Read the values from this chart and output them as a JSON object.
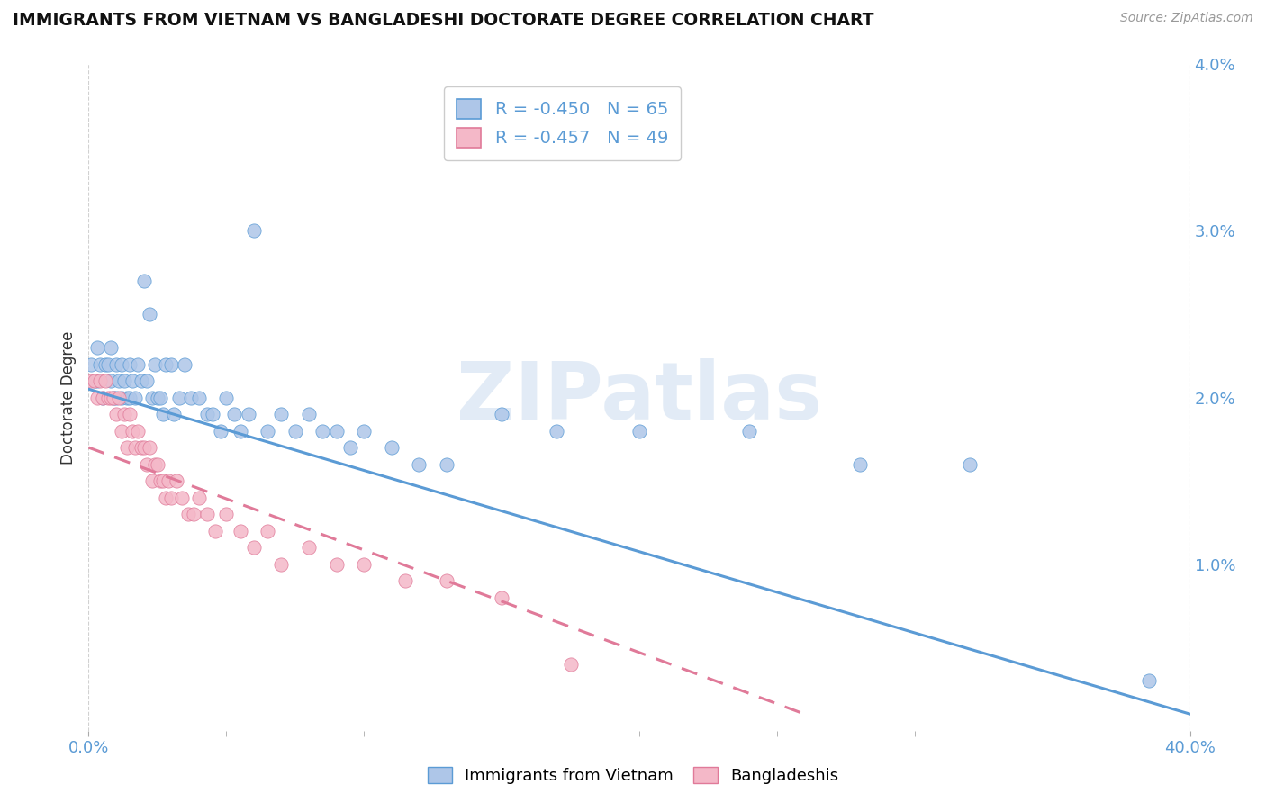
{
  "title": "IMMIGRANTS FROM VIETNAM VS BANGLADESHI DOCTORATE DEGREE CORRELATION CHART",
  "source": "Source: ZipAtlas.com",
  "ylabel": "Doctorate Degree",
  "right_yticks": [
    "",
    "1.0%",
    "2.0%",
    "3.0%",
    "4.0%"
  ],
  "right_ytick_vals": [
    0.0,
    0.01,
    0.02,
    0.03,
    0.04
  ],
  "xmin": 0.0,
  "xmax": 0.4,
  "ymin": 0.0,
  "ymax": 0.04,
  "legend_entries": [
    {
      "label": "R = -0.450   N = 65",
      "color": "#aec6e8"
    },
    {
      "label": "R = -0.457   N = 49",
      "color": "#f4b8c8"
    }
  ],
  "legend_label_bottom": [
    "Immigrants from Vietnam",
    "Bangladeshis"
  ],
  "series1_color": "#aec6e8",
  "series2_color": "#f4b8c8",
  "line1_color": "#5b9bd5",
  "line2_color": "#e07a99",
  "background_color": "#ffffff",
  "grid_color": "#cccccc",
  "watermark": "ZIPatlas",
  "scatter1_x": [
    0.001,
    0.002,
    0.003,
    0.003,
    0.004,
    0.005,
    0.006,
    0.007,
    0.008,
    0.008,
    0.009,
    0.01,
    0.01,
    0.011,
    0.012,
    0.012,
    0.013,
    0.014,
    0.015,
    0.015,
    0.016,
    0.017,
    0.018,
    0.019,
    0.02,
    0.021,
    0.022,
    0.023,
    0.024,
    0.025,
    0.026,
    0.027,
    0.028,
    0.03,
    0.031,
    0.033,
    0.035,
    0.037,
    0.04,
    0.043,
    0.045,
    0.048,
    0.05,
    0.053,
    0.055,
    0.058,
    0.06,
    0.065,
    0.07,
    0.075,
    0.08,
    0.085,
    0.09,
    0.095,
    0.1,
    0.11,
    0.12,
    0.13,
    0.15,
    0.17,
    0.2,
    0.24,
    0.28,
    0.32,
    0.385
  ],
  "scatter1_y": [
    0.022,
    0.021,
    0.023,
    0.021,
    0.022,
    0.02,
    0.022,
    0.022,
    0.023,
    0.021,
    0.02,
    0.022,
    0.02,
    0.021,
    0.022,
    0.02,
    0.021,
    0.02,
    0.022,
    0.02,
    0.021,
    0.02,
    0.022,
    0.021,
    0.027,
    0.021,
    0.025,
    0.02,
    0.022,
    0.02,
    0.02,
    0.019,
    0.022,
    0.022,
    0.019,
    0.02,
    0.022,
    0.02,
    0.02,
    0.019,
    0.019,
    0.018,
    0.02,
    0.019,
    0.018,
    0.019,
    0.03,
    0.018,
    0.019,
    0.018,
    0.019,
    0.018,
    0.018,
    0.017,
    0.018,
    0.017,
    0.016,
    0.016,
    0.019,
    0.018,
    0.018,
    0.018,
    0.016,
    0.016,
    0.003
  ],
  "scatter2_x": [
    0.001,
    0.002,
    0.003,
    0.004,
    0.005,
    0.006,
    0.007,
    0.008,
    0.009,
    0.01,
    0.011,
    0.012,
    0.013,
    0.014,
    0.015,
    0.016,
    0.017,
    0.018,
    0.019,
    0.02,
    0.021,
    0.022,
    0.023,
    0.024,
    0.025,
    0.026,
    0.027,
    0.028,
    0.029,
    0.03,
    0.032,
    0.034,
    0.036,
    0.038,
    0.04,
    0.043,
    0.046,
    0.05,
    0.055,
    0.06,
    0.065,
    0.07,
    0.08,
    0.09,
    0.1,
    0.115,
    0.13,
    0.15,
    0.175
  ],
  "scatter2_y": [
    0.021,
    0.021,
    0.02,
    0.021,
    0.02,
    0.021,
    0.02,
    0.02,
    0.02,
    0.019,
    0.02,
    0.018,
    0.019,
    0.017,
    0.019,
    0.018,
    0.017,
    0.018,
    0.017,
    0.017,
    0.016,
    0.017,
    0.015,
    0.016,
    0.016,
    0.015,
    0.015,
    0.014,
    0.015,
    0.014,
    0.015,
    0.014,
    0.013,
    0.013,
    0.014,
    0.013,
    0.012,
    0.013,
    0.012,
    0.011,
    0.012,
    0.01,
    0.011,
    0.01,
    0.01,
    0.009,
    0.009,
    0.008,
    0.004
  ],
  "line1_x0": 0.0,
  "line1_y0": 0.0205,
  "line1_x1": 0.4,
  "line1_y1": 0.001,
  "line2_x0": 0.0,
  "line2_y0": 0.017,
  "line2_x1": 0.26,
  "line2_y1": 0.001
}
